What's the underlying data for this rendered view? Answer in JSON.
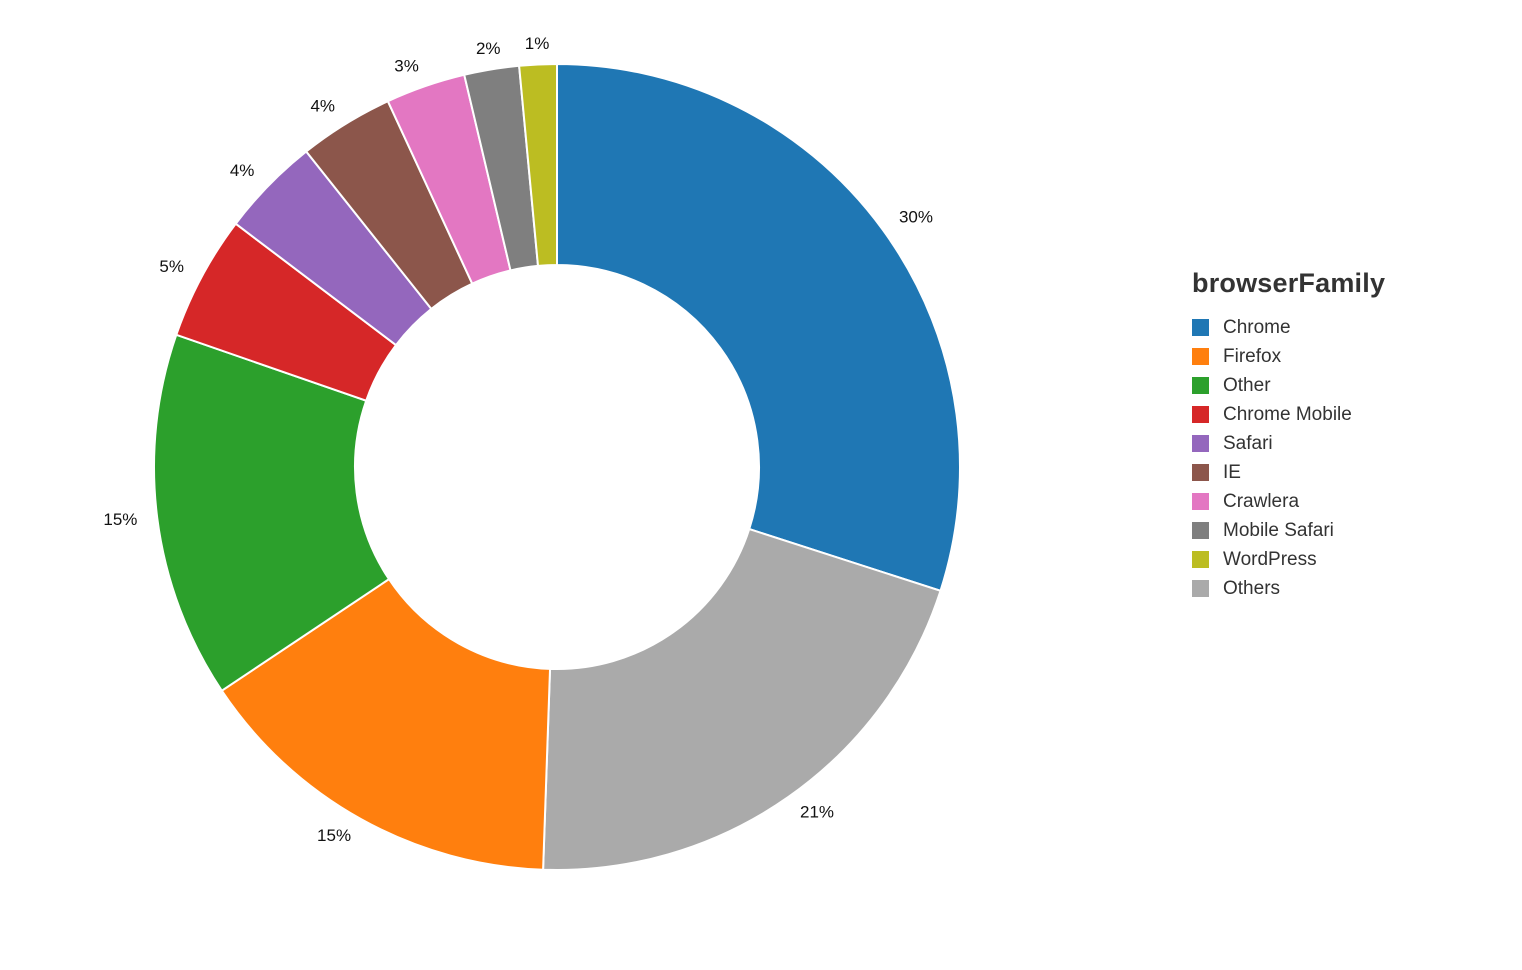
{
  "chart_data": {
    "type": "pie",
    "variant": "donut",
    "title": "",
    "legend_title": "browserFamily",
    "legend_position": "right",
    "label_format": "percent",
    "start_angle": "12 o'clock",
    "direction": "clockwise",
    "slice_order": [
      "Chrome",
      "Others",
      "Firefox",
      "Other",
      "Chrome Mobile",
      "Safari",
      "IE",
      "Crawlera",
      "Mobile Safari",
      "WordPress"
    ],
    "categories": [
      "Chrome",
      "Firefox",
      "Other",
      "Chrome Mobile",
      "Safari",
      "IE",
      "Crawlera",
      "Mobile Safari",
      "WordPress",
      "Others"
    ],
    "values": [
      30.0,
      15.1,
      14.7,
      5.0,
      4.0,
      3.8,
      3.2,
      2.2,
      1.5,
      20.6
    ],
    "labels": [
      "30%",
      "15%",
      "15%",
      "5%",
      "4%",
      "4%",
      "3%",
      "2%",
      "1%",
      "21%"
    ],
    "colors": [
      "#1f77b4",
      "#ff7f0e",
      "#2ca02c",
      "#d62728",
      "#9467bd",
      "#8c564b",
      "#e377c2",
      "#7f7f7f",
      "#bcbd22",
      "#aaaaaa"
    ]
  },
  "legend": {
    "title": "browserFamily",
    "items": [
      {
        "label": "Chrome",
        "color": "#1f77b4"
      },
      {
        "label": "Firefox",
        "color": "#ff7f0e"
      },
      {
        "label": "Other",
        "color": "#2ca02c"
      },
      {
        "label": "Chrome Mobile",
        "color": "#d62728"
      },
      {
        "label": "Safari",
        "color": "#9467bd"
      },
      {
        "label": "IE",
        "color": "#8c564b"
      },
      {
        "label": "Crawlera",
        "color": "#e377c2"
      },
      {
        "label": "Mobile Safari",
        "color": "#7f7f7f"
      },
      {
        "label": "WordPress",
        "color": "#bcbd22"
      },
      {
        "label": "Others",
        "color": "#aaaaaa"
      }
    ]
  }
}
